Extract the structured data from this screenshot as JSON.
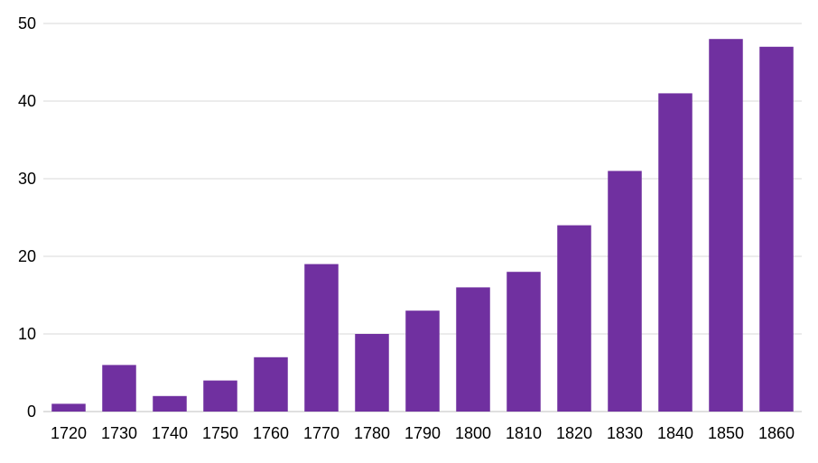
{
  "chart_data": {
    "type": "bar",
    "title": "",
    "xlabel": "",
    "ylabel": "",
    "categories": [
      "1720",
      "1730",
      "1740",
      "1750",
      "1760",
      "1770",
      "1780",
      "1790",
      "1800",
      "1810",
      "1820",
      "1830",
      "1840",
      "1850",
      "1860"
    ],
    "values": [
      1,
      6,
      2,
      4,
      7,
      19,
      10,
      13,
      16,
      18,
      24,
      31,
      41,
      48,
      47
    ],
    "ylim": [
      0,
      50
    ],
    "yticks": [
      0,
      10,
      20,
      30,
      40,
      50
    ],
    "grid": true,
    "legend": "none",
    "bar_color": "#7030a0"
  }
}
